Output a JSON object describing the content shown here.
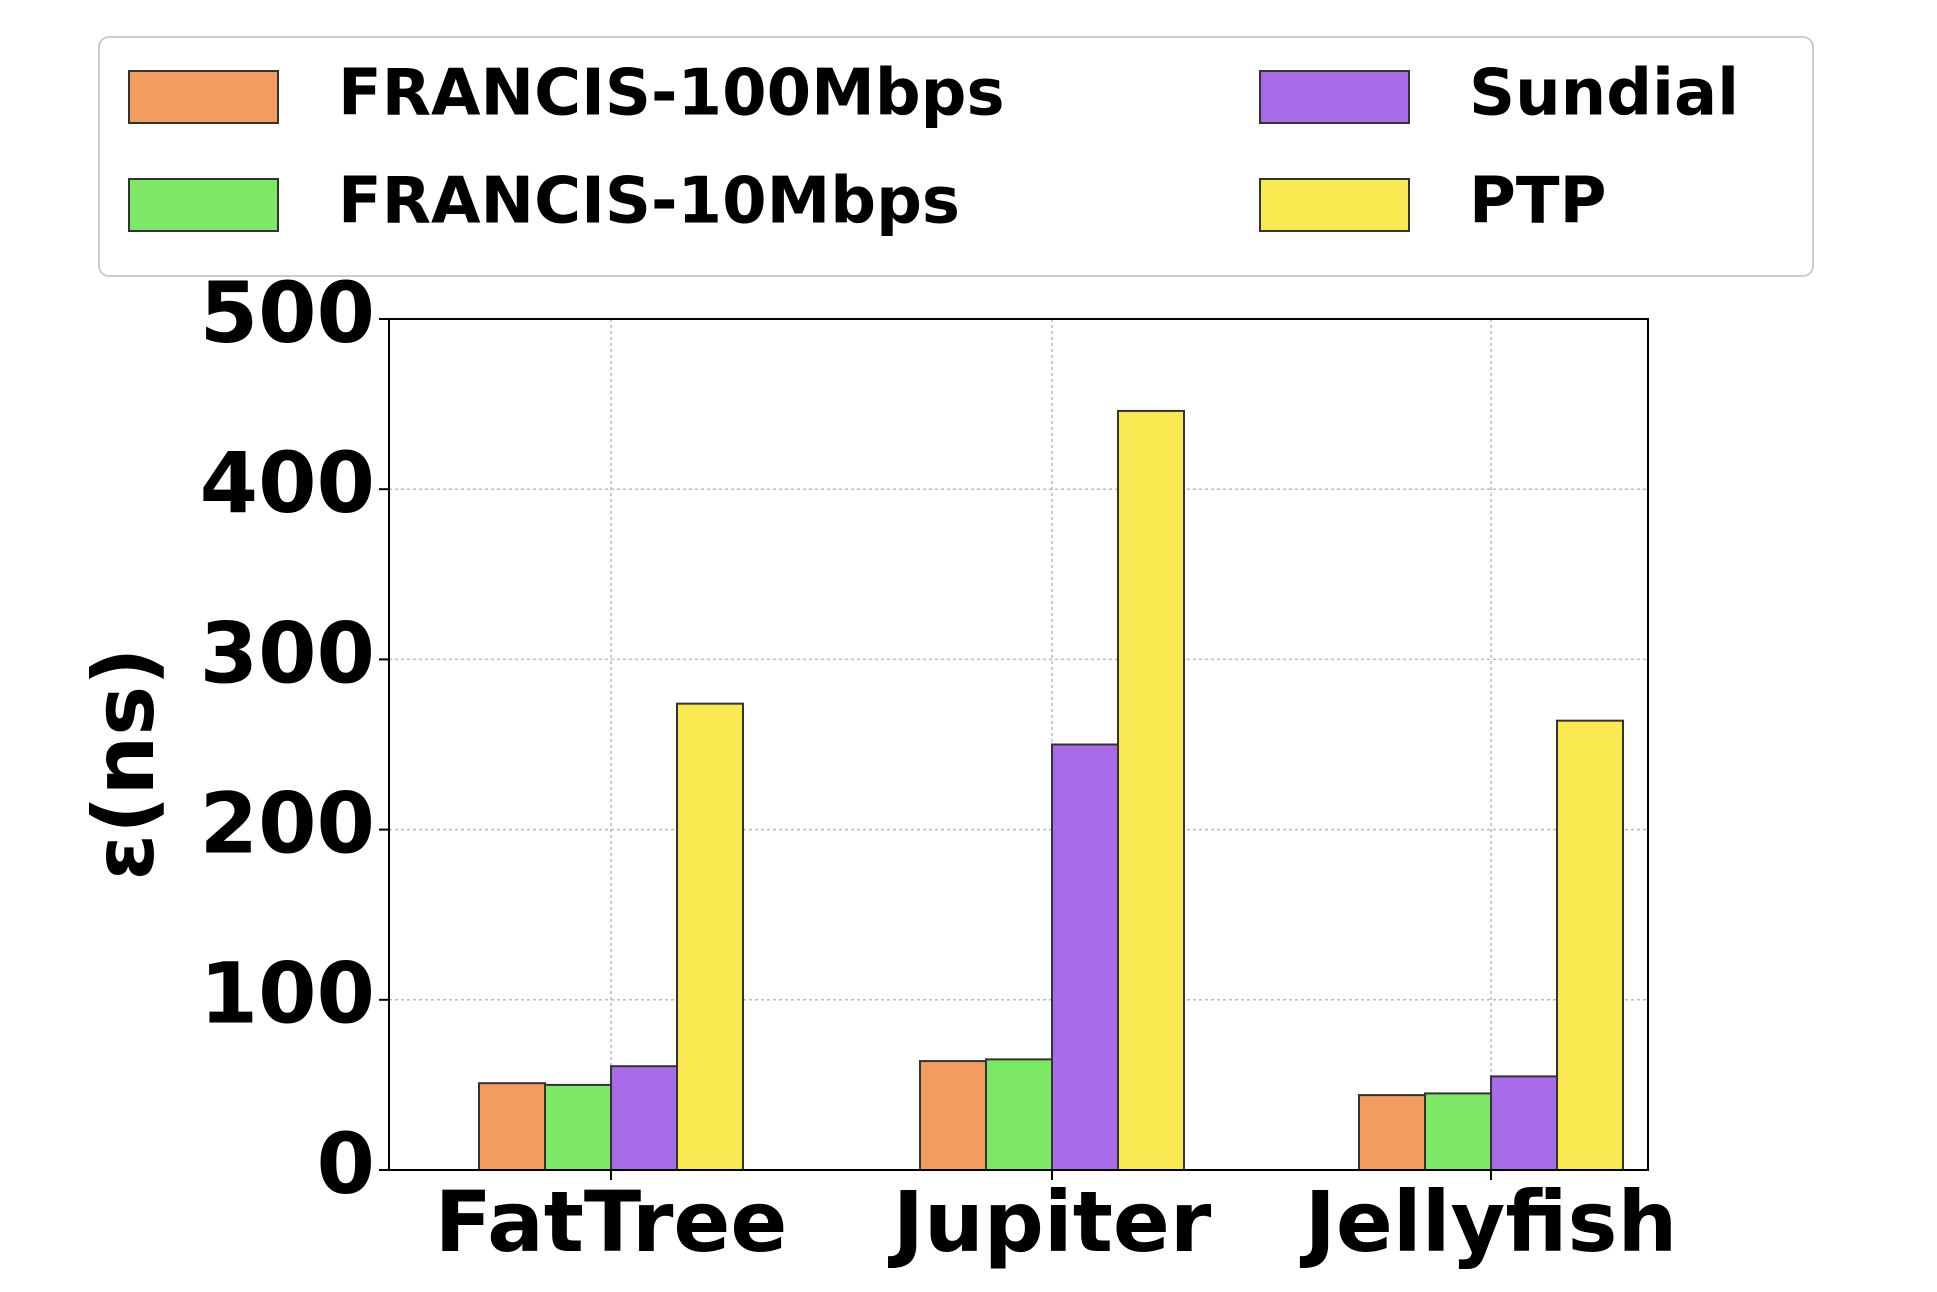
{
  "chart_data": {
    "type": "bar",
    "ylabel": "ε(ns)",
    "categories": [
      "FatTree",
      "Jupiter",
      "Jellyfish"
    ],
    "series": [
      {
        "name": "FRANCIS-100Mbps",
        "color": "#f39c5f",
        "values": [
          51,
          64,
          44
        ]
      },
      {
        "name": "FRANCIS-10Mbps",
        "color": "#7de865",
        "values": [
          50,
          65,
          45
        ]
      },
      {
        "name": "Sundial",
        "color": "#a96ae8",
        "values": [
          61,
          250,
          55
        ]
      },
      {
        "name": "PTP",
        "color": "#f9e84f",
        "values": [
          274,
          446,
          264
        ]
      }
    ],
    "ylim": [
      0,
      500
    ],
    "yticks": [
      0,
      100,
      200,
      300,
      400,
      500
    ],
    "grid": true
  }
}
